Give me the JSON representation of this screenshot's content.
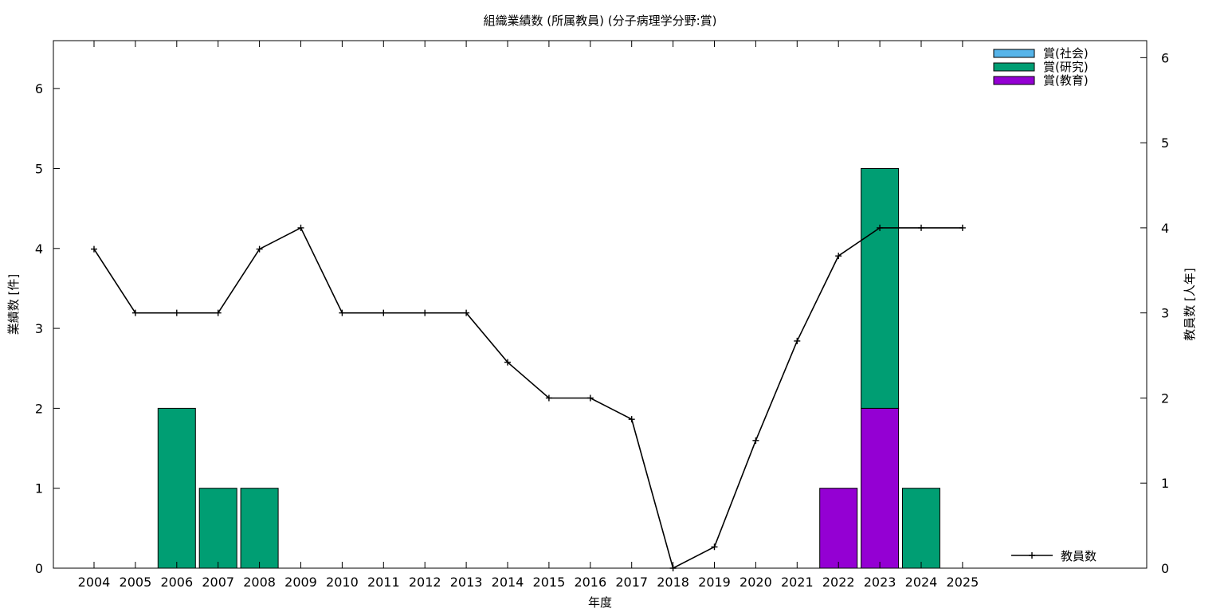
{
  "chart_data": {
    "type": "bar",
    "title": "組織業績数 (所属教員) (分子病理学分野:賞)",
    "xlabel": "年度",
    "ylabel": "業績数 [件]",
    "y2label": "教員数 [人年]",
    "categories": [
      "2004",
      "2005",
      "2006",
      "2007",
      "2008",
      "2009",
      "2010",
      "2011",
      "2012",
      "2013",
      "2014",
      "2015",
      "2016",
      "2017",
      "2018",
      "2019",
      "2020",
      "2021",
      "2022",
      "2023",
      "2024",
      "2025"
    ],
    "ylim": [
      0,
      6.6
    ],
    "y2lim": [
      0,
      6.2
    ],
    "yticks": [
      0,
      1,
      2,
      3,
      4,
      5,
      6
    ],
    "y2ticks": [
      0,
      1,
      2,
      3,
      4,
      5,
      6
    ],
    "stacked": true,
    "grid": false,
    "legend_position": "top-right",
    "series": [
      {
        "name": "賞(教育)",
        "color": "#9400d3",
        "values": [
          0,
          0,
          0,
          0,
          0,
          0,
          0,
          0,
          0,
          0,
          0,
          0,
          0,
          0,
          0,
          0,
          0,
          0,
          1,
          2,
          0,
          0
        ]
      },
      {
        "name": "賞(研究)",
        "color": "#009e73",
        "values": [
          0,
          0,
          2,
          1,
          1,
          0,
          0,
          0,
          0,
          0,
          0,
          0,
          0,
          0,
          0,
          0,
          0,
          0,
          0,
          3,
          1,
          0
        ]
      },
      {
        "name": "賞(社会)",
        "color": "#56b4e9",
        "values": [
          0,
          0,
          0,
          0,
          0,
          0,
          0,
          0,
          0,
          0,
          0,
          0,
          0,
          0,
          0,
          0,
          0,
          0,
          0,
          0,
          0,
          0
        ]
      }
    ],
    "line_series": {
      "name": "教員数",
      "axis": "y2",
      "color": "#000000",
      "values": [
        3.75,
        3,
        3,
        3,
        3.75,
        4,
        3,
        3,
        3,
        3,
        2.42,
        2,
        2,
        1.75,
        0,
        0.25,
        1.5,
        2.67,
        3.67,
        4,
        4,
        4
      ]
    },
    "legend_order": [
      "賞(社会)",
      "賞(研究)",
      "賞(教育)"
    ]
  }
}
